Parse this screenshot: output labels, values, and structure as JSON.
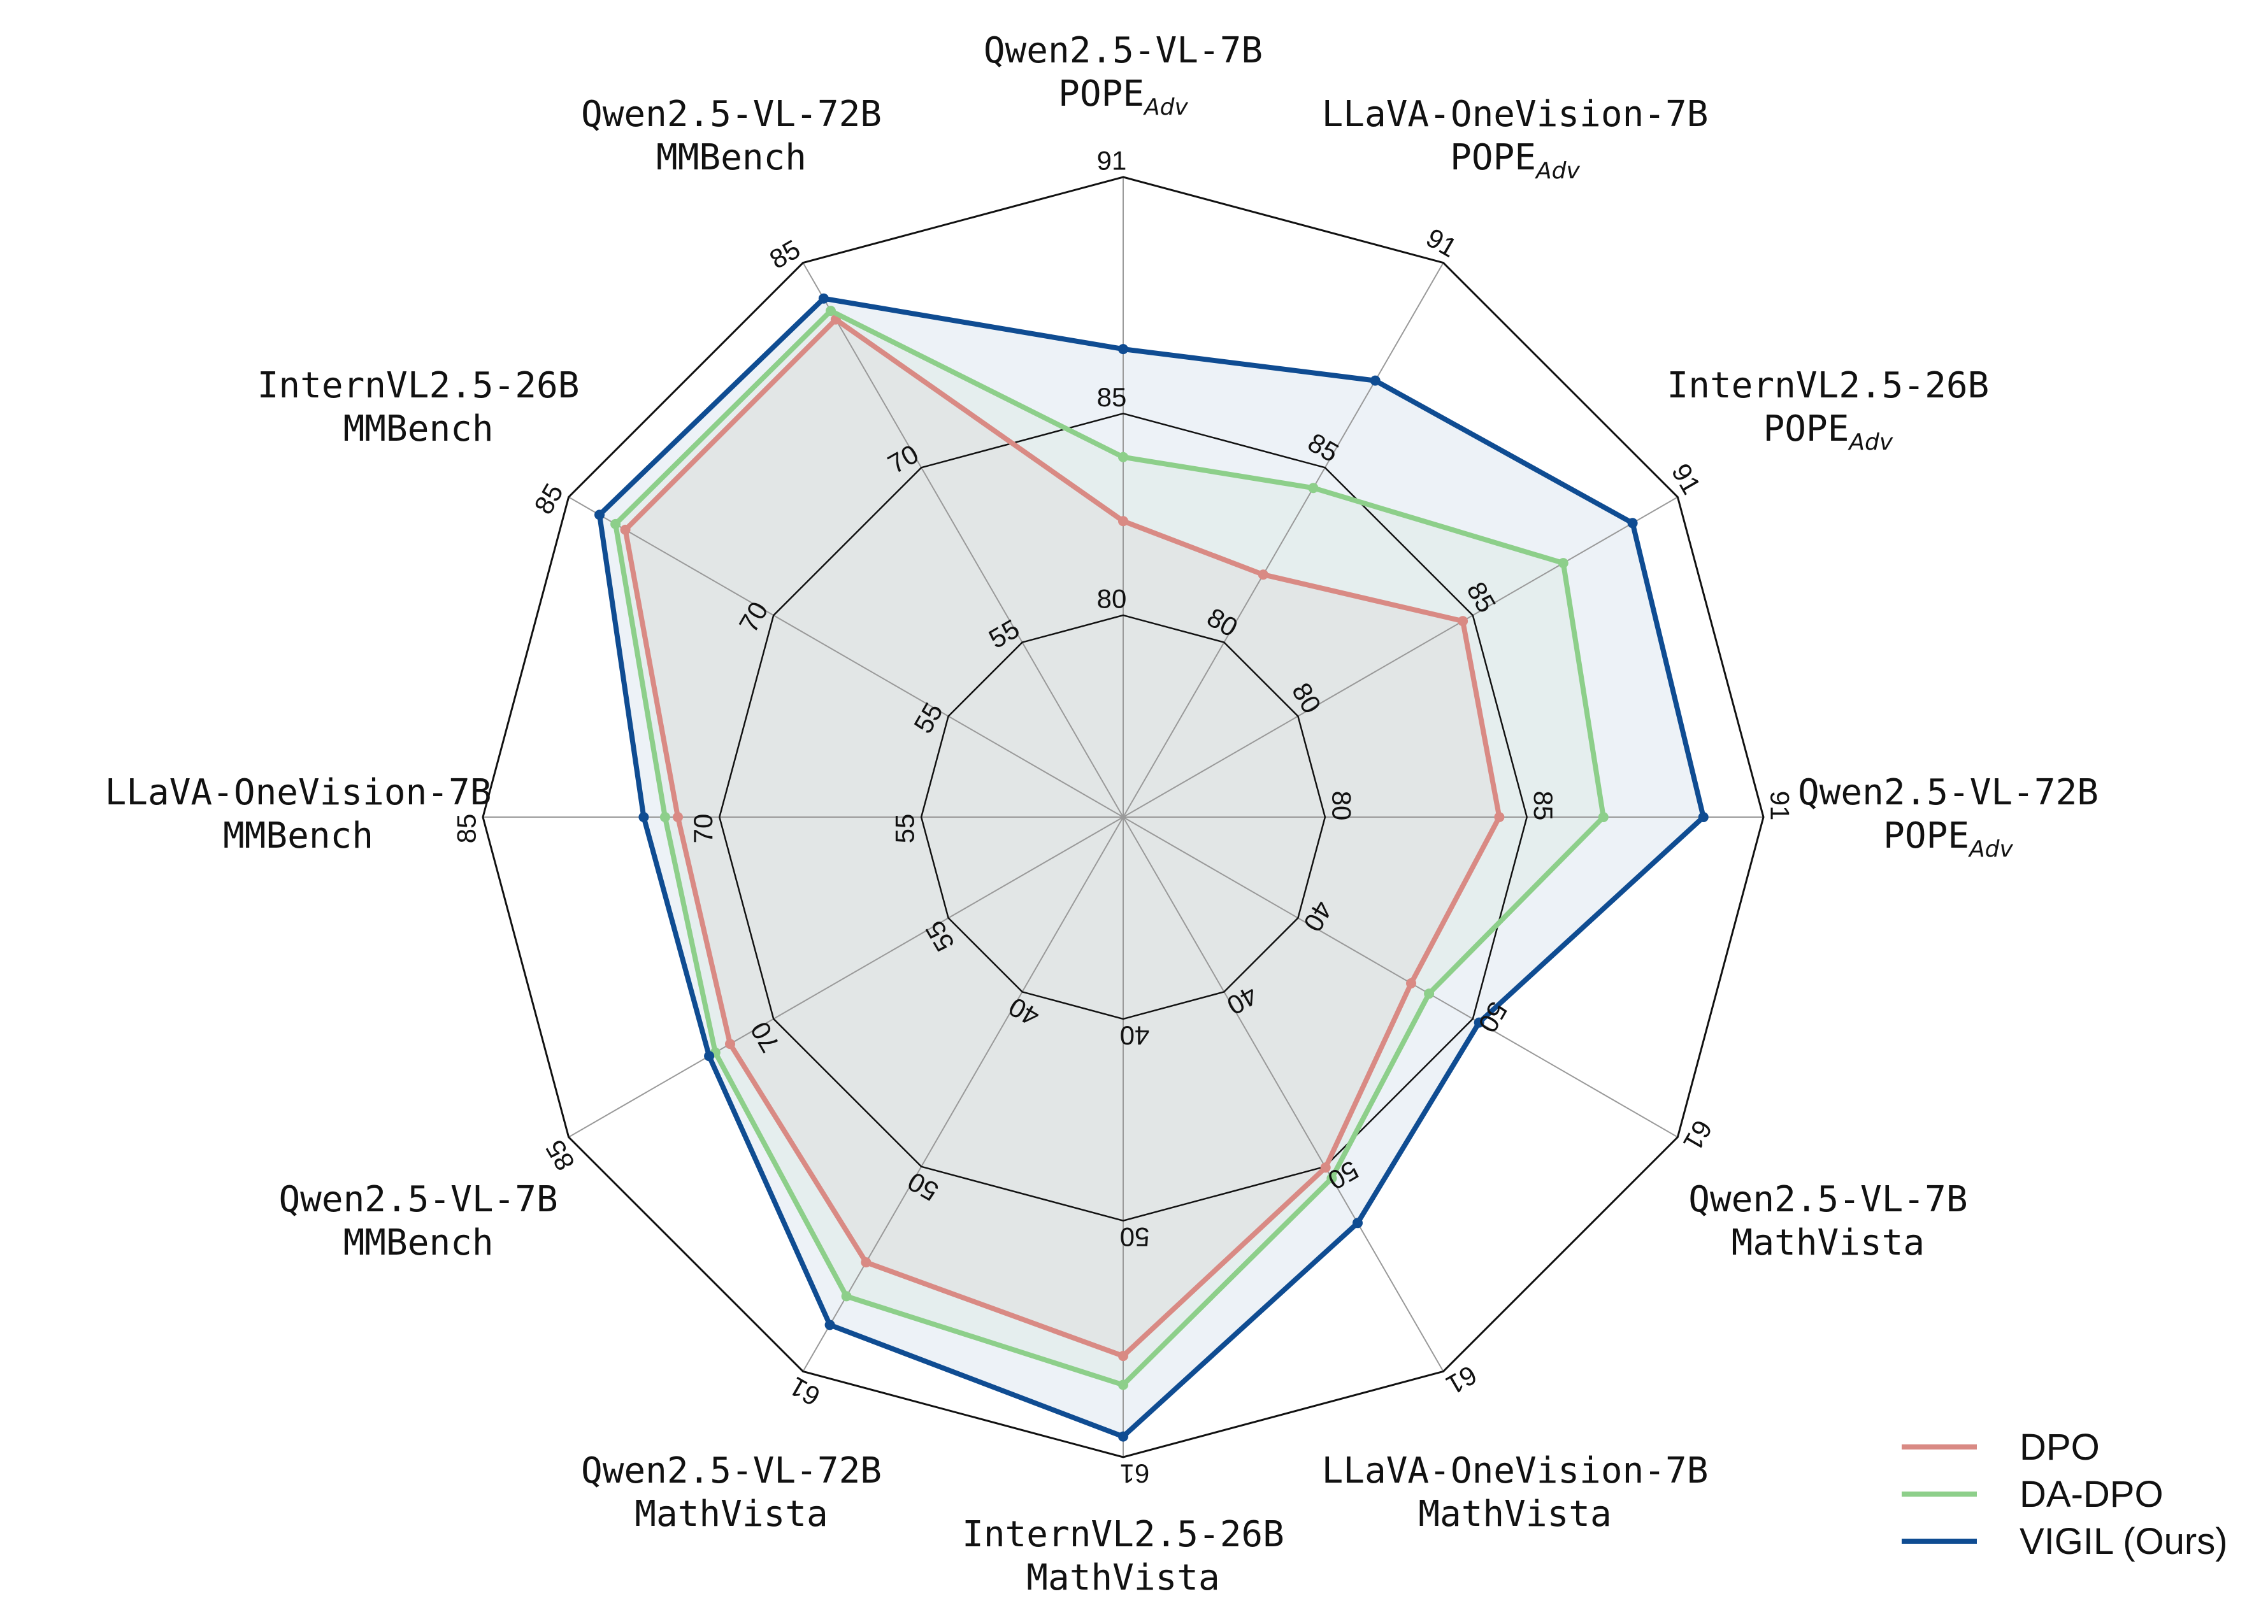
{
  "chart_data": {
    "type": "radar",
    "grid": true,
    "legend_position": "bottom-right",
    "axes": [
      {
        "model": "Qwen2.5-VL-7B",
        "metric": "POPE",
        "metric_sub": "Adv",
        "ticks": [
          "80",
          "85",
          "91"
        ],
        "range": [
          75,
          91
        ]
      },
      {
        "model": "LLaVA-OneVision-7B",
        "metric": "POPE",
        "metric_sub": "Adv",
        "ticks": [
          "80",
          "85",
          "91"
        ],
        "range": [
          75,
          91
        ]
      },
      {
        "model": "InternVL2.5-26B",
        "metric": "POPE",
        "metric_sub": "Adv",
        "ticks": [
          "80",
          "85",
          "91"
        ],
        "range": [
          75,
          91
        ]
      },
      {
        "model": "Qwen2.5-VL-72B",
        "metric": "POPE",
        "metric_sub": "Adv",
        "ticks": [
          "80",
          "85",
          "91"
        ],
        "range": [
          75,
          91
        ]
      },
      {
        "model": "Qwen2.5-VL-7B",
        "metric": "MathVista",
        "metric_sub": "",
        "ticks": [
          "40",
          "50",
          "61"
        ],
        "range": [
          30,
          61
        ]
      },
      {
        "model": "LLaVA-OneVision-7B",
        "metric": "MathVista",
        "metric_sub": "",
        "ticks": [
          "40",
          "50",
          "61"
        ],
        "range": [
          30,
          61
        ]
      },
      {
        "model": "InternVL2.5-26B",
        "metric": "MathVista",
        "metric_sub": "",
        "ticks": [
          "40",
          "50",
          "61"
        ],
        "range": [
          30,
          61
        ]
      },
      {
        "model": "Qwen2.5-VL-72B",
        "metric": "MathVista",
        "metric_sub": "",
        "ticks": [
          "40",
          "50",
          "61"
        ],
        "range": [
          30,
          61
        ]
      },
      {
        "model": "Qwen2.5-VL-7B",
        "metric": "MMBench",
        "metric_sub": "",
        "ticks": [
          "55",
          "70",
          "85"
        ],
        "range": [
          40,
          85
        ]
      },
      {
        "model": "LLaVA-OneVision-7B",
        "metric": "MMBench",
        "metric_sub": "",
        "ticks": [
          "55",
          "70",
          "85"
        ],
        "range": [
          40,
          85
        ]
      },
      {
        "model": "InternVL2.5-26B",
        "metric": "MMBench",
        "metric_sub": "",
        "ticks": [
          "55",
          "70",
          "85"
        ],
        "range": [
          40,
          85
        ]
      },
      {
        "model": "Qwen2.5-VL-72B",
        "metric": "MMBench",
        "metric_sub": "",
        "ticks": [
          "55",
          "70",
          "85"
        ],
        "range": [
          40,
          85
        ]
      }
    ],
    "series": [
      {
        "name": "DPO",
        "color": "#d98a84",
        "values": [
          82.4,
          82.0,
          84.8,
          84.4,
          46.1,
          49.6,
          56.1,
          54.9,
          71.9,
          71.3,
          80.4,
          80.4
        ]
      },
      {
        "name": "DA-DPO",
        "color": "#8dcf8a",
        "values": [
          84.0,
          84.5,
          87.7,
          87.0,
          47.1,
          50.2,
          57.5,
          56.8,
          73.1,
          72.2,
          81.2,
          81.1
        ]
      },
      {
        "name": "VIGIL (Ours)",
        "color": "#0f4c92",
        "values": [
          86.7,
          87.6,
          89.7,
          89.5,
          49.9,
          52.7,
          60.0,
          58.4,
          73.6,
          73.7,
          82.5,
          82.1
        ]
      }
    ]
  }
}
